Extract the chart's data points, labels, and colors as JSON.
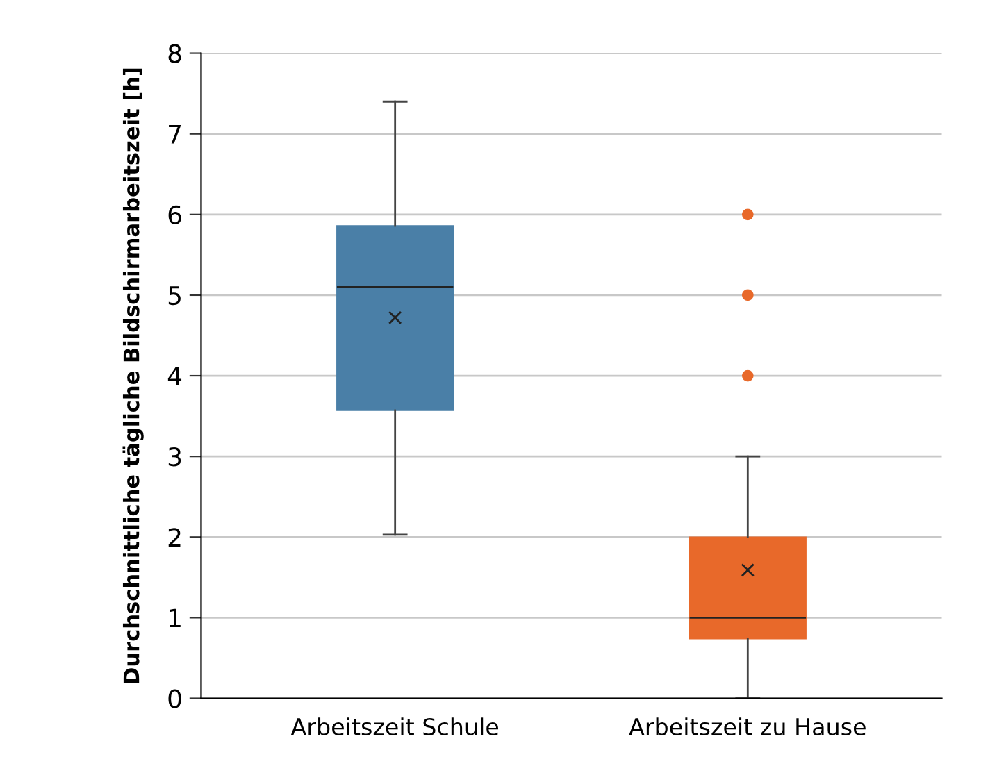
{
  "chart_data": {
    "type": "box",
    "ylabel": "Durchschnittliche tägliche Bildschirmarbeitszeit [h]",
    "categories": [
      "Arbeitszeit Schule",
      "Arbeitszeit zu Hause"
    ],
    "colors": [
      "#4a7fa7",
      "#e8692a"
    ],
    "boxes": [
      {
        "low": 2.03,
        "q1": 3.57,
        "median": 5.1,
        "q3": 5.86,
        "high": 7.4,
        "mean": 4.72
      },
      {
        "low": 0,
        "q1": 0.74,
        "median": 1.0,
        "q3": 2.0,
        "high": 3.0,
        "mean": 1.59,
        "outliers": [
          4,
          5,
          6
        ]
      }
    ],
    "ylim": [
      0,
      8
    ],
    "yticks": [
      0,
      1,
      2,
      3,
      4,
      5,
      6,
      7,
      8
    ],
    "grid": "y"
  }
}
